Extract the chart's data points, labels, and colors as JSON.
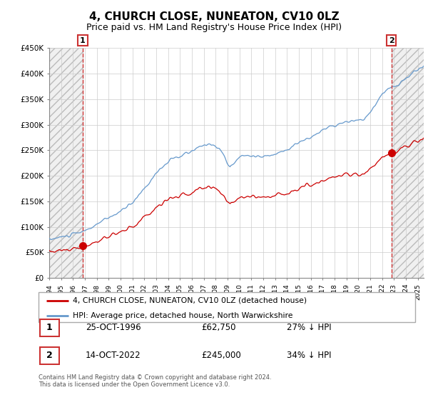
{
  "title": "4, CHURCH CLOSE, NUNEATON, CV10 0LZ",
  "subtitle": "Price paid vs. HM Land Registry's House Price Index (HPI)",
  "ylim": [
    0,
    450000
  ],
  "yticks": [
    0,
    50000,
    100000,
    150000,
    200000,
    250000,
    300000,
    350000,
    400000,
    450000
  ],
  "ytick_labels": [
    "£0",
    "£50K",
    "£100K",
    "£150K",
    "£200K",
    "£250K",
    "£300K",
    "£350K",
    "£400K",
    "£450K"
  ],
  "hpi_color": "#6699cc",
  "price_color": "#cc0000",
  "vline_color": "#cc3333",
  "sale1_date": 1996.82,
  "sale1_price": 62750,
  "sale1_label": "1",
  "sale2_date": 2022.79,
  "sale2_price": 245000,
  "sale2_label": "2",
  "legend_line1": "4, CHURCH CLOSE, NUNEATON, CV10 0LZ (detached house)",
  "legend_line2": "HPI: Average price, detached house, North Warwickshire",
  "table_row1": [
    "1",
    "25-OCT-1996",
    "£62,750",
    "27% ↓ HPI"
  ],
  "table_row2": [
    "2",
    "14-OCT-2022",
    "£245,000",
    "34% ↓ HPI"
  ],
  "footnote": "Contains HM Land Registry data © Crown copyright and database right 2024.\nThis data is licensed under the Open Government Licence v3.0.",
  "grid_color": "#cccccc",
  "hatch_color": "#cccccc",
  "title_fontsize": 11,
  "subtitle_fontsize": 9,
  "xstart": 1994,
  "xend": 2025.5
}
